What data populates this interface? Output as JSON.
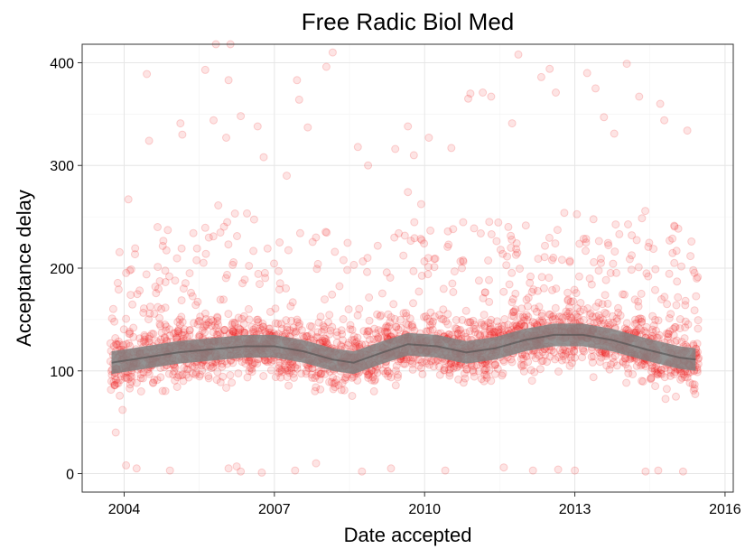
{
  "chart_data": {
    "type": "scatter",
    "title": "Free Radic Biol Med",
    "xlabel": "Date accepted",
    "ylabel": "Acceptance delay",
    "x_ticks": [
      "2004",
      "2007",
      "2010",
      "2013",
      "2016"
    ],
    "y_ticks": [
      "0",
      "100",
      "200",
      "300",
      "400"
    ],
    "xlim": [
      "2003-03-01",
      "2016-03-01"
    ],
    "ylim": [
      -18,
      418
    ],
    "grid": true,
    "legend": "none",
    "point_color": "#ef1f1f",
    "point_opacity": 0.12,
    "trend_color": "#4d4d4d",
    "trend_band_color": "#808080",
    "series": [
      {
        "kind": "points",
        "points": [
          [
            "2003-10-05",
            151
          ],
          [
            "2003-12-20",
            62
          ],
          [
            "2004-02-01",
            267
          ],
          [
            "2004-06-15",
            389
          ],
          [
            "2004-07-01",
            324
          ],
          [
            "2004-09-01",
            240
          ],
          [
            "2005-02-15",
            341
          ],
          [
            "2005-03-01",
            330
          ],
          [
            "2005-08-15",
            393
          ],
          [
            "2005-10-15",
            344
          ],
          [
            "2005-11-01",
            418
          ],
          [
            "2006-01-15",
            327
          ],
          [
            "2006-02-01",
            383
          ],
          [
            "2006-02-15",
            418
          ],
          [
            "2006-05-01",
            348
          ],
          [
            "2006-09-01",
            338
          ],
          [
            "2006-10-15",
            308
          ],
          [
            "2007-04-01",
            290
          ],
          [
            "2007-06-15",
            383
          ],
          [
            "2007-07-01",
            364
          ],
          [
            "2007-09-01",
            337
          ],
          [
            "2008-01-15",
            396
          ],
          [
            "2008-03-01",
            410
          ],
          [
            "2008-09-01",
            318
          ],
          [
            "2008-11-15",
            300
          ],
          [
            "2009-06-01",
            316
          ],
          [
            "2009-09-01",
            338
          ],
          [
            "2009-10-15",
            310
          ],
          [
            "2010-02-01",
            327
          ],
          [
            "2010-07-15",
            317
          ],
          [
            "2010-11-15",
            365
          ],
          [
            "2010-12-01",
            370
          ],
          [
            "2011-03-01",
            371
          ],
          [
            "2011-05-01",
            367
          ],
          [
            "2011-10-01",
            341
          ],
          [
            "2011-11-15",
            408
          ],
          [
            "2012-05-01",
            386
          ],
          [
            "2012-07-01",
            394
          ],
          [
            "2012-08-15",
            371
          ],
          [
            "2013-04-01",
            390
          ],
          [
            "2013-06-01",
            375
          ],
          [
            "2013-08-01",
            347
          ],
          [
            "2013-10-15",
            331
          ],
          [
            "2014-01-15",
            399
          ],
          [
            "2014-04-15",
            367
          ],
          [
            "2014-09-15",
            360
          ],
          [
            "2014-10-15",
            344
          ],
          [
            "2015-04-01",
            334
          ],
          [
            "2003-11-01",
            40
          ],
          [
            "2004-01-15",
            8
          ],
          [
            "2004-04-01",
            5
          ],
          [
            "2004-12-01",
            3
          ],
          [
            "2006-02-01",
            5
          ],
          [
            "2006-04-01",
            7
          ],
          [
            "2006-05-01",
            2
          ],
          [
            "2006-10-01",
            1
          ],
          [
            "2007-06-01",
            3
          ],
          [
            "2007-11-01",
            10
          ],
          [
            "2008-10-01",
            2
          ],
          [
            "2009-05-01",
            5
          ],
          [
            "2010-06-01",
            3
          ],
          [
            "2011-08-01",
            6
          ],
          [
            "2012-03-01",
            3
          ],
          [
            "2012-09-01",
            4
          ],
          [
            "2013-01-01",
            3
          ],
          [
            "2014-06-01",
            2
          ],
          [
            "2014-09-01",
            3
          ],
          [
            "2015-03-01",
            2
          ]
        ]
      },
      {
        "kind": "trend",
        "points": [
          [
            "2003-10-01",
            108
          ],
          [
            "2004-06-01",
            113
          ],
          [
            "2005-02-01",
            118
          ],
          [
            "2005-10-01",
            121
          ],
          [
            "2006-06-01",
            124
          ],
          [
            "2007-01-01",
            124
          ],
          [
            "2007-08-01",
            119
          ],
          [
            "2008-03-01",
            111
          ],
          [
            "2008-08-01",
            108
          ],
          [
            "2009-03-01",
            118
          ],
          [
            "2009-09-01",
            126
          ],
          [
            "2010-04-01",
            124
          ],
          [
            "2010-11-01",
            118
          ],
          [
            "2011-06-01",
            122
          ],
          [
            "2012-01-01",
            130
          ],
          [
            "2012-08-01",
            135
          ],
          [
            "2013-03-01",
            135
          ],
          [
            "2013-10-01",
            130
          ],
          [
            "2014-06-01",
            121
          ],
          [
            "2015-02-01",
            113
          ],
          [
            "2015-06-01",
            111
          ]
        ],
        "band_half_width": 11
      }
    ]
  }
}
